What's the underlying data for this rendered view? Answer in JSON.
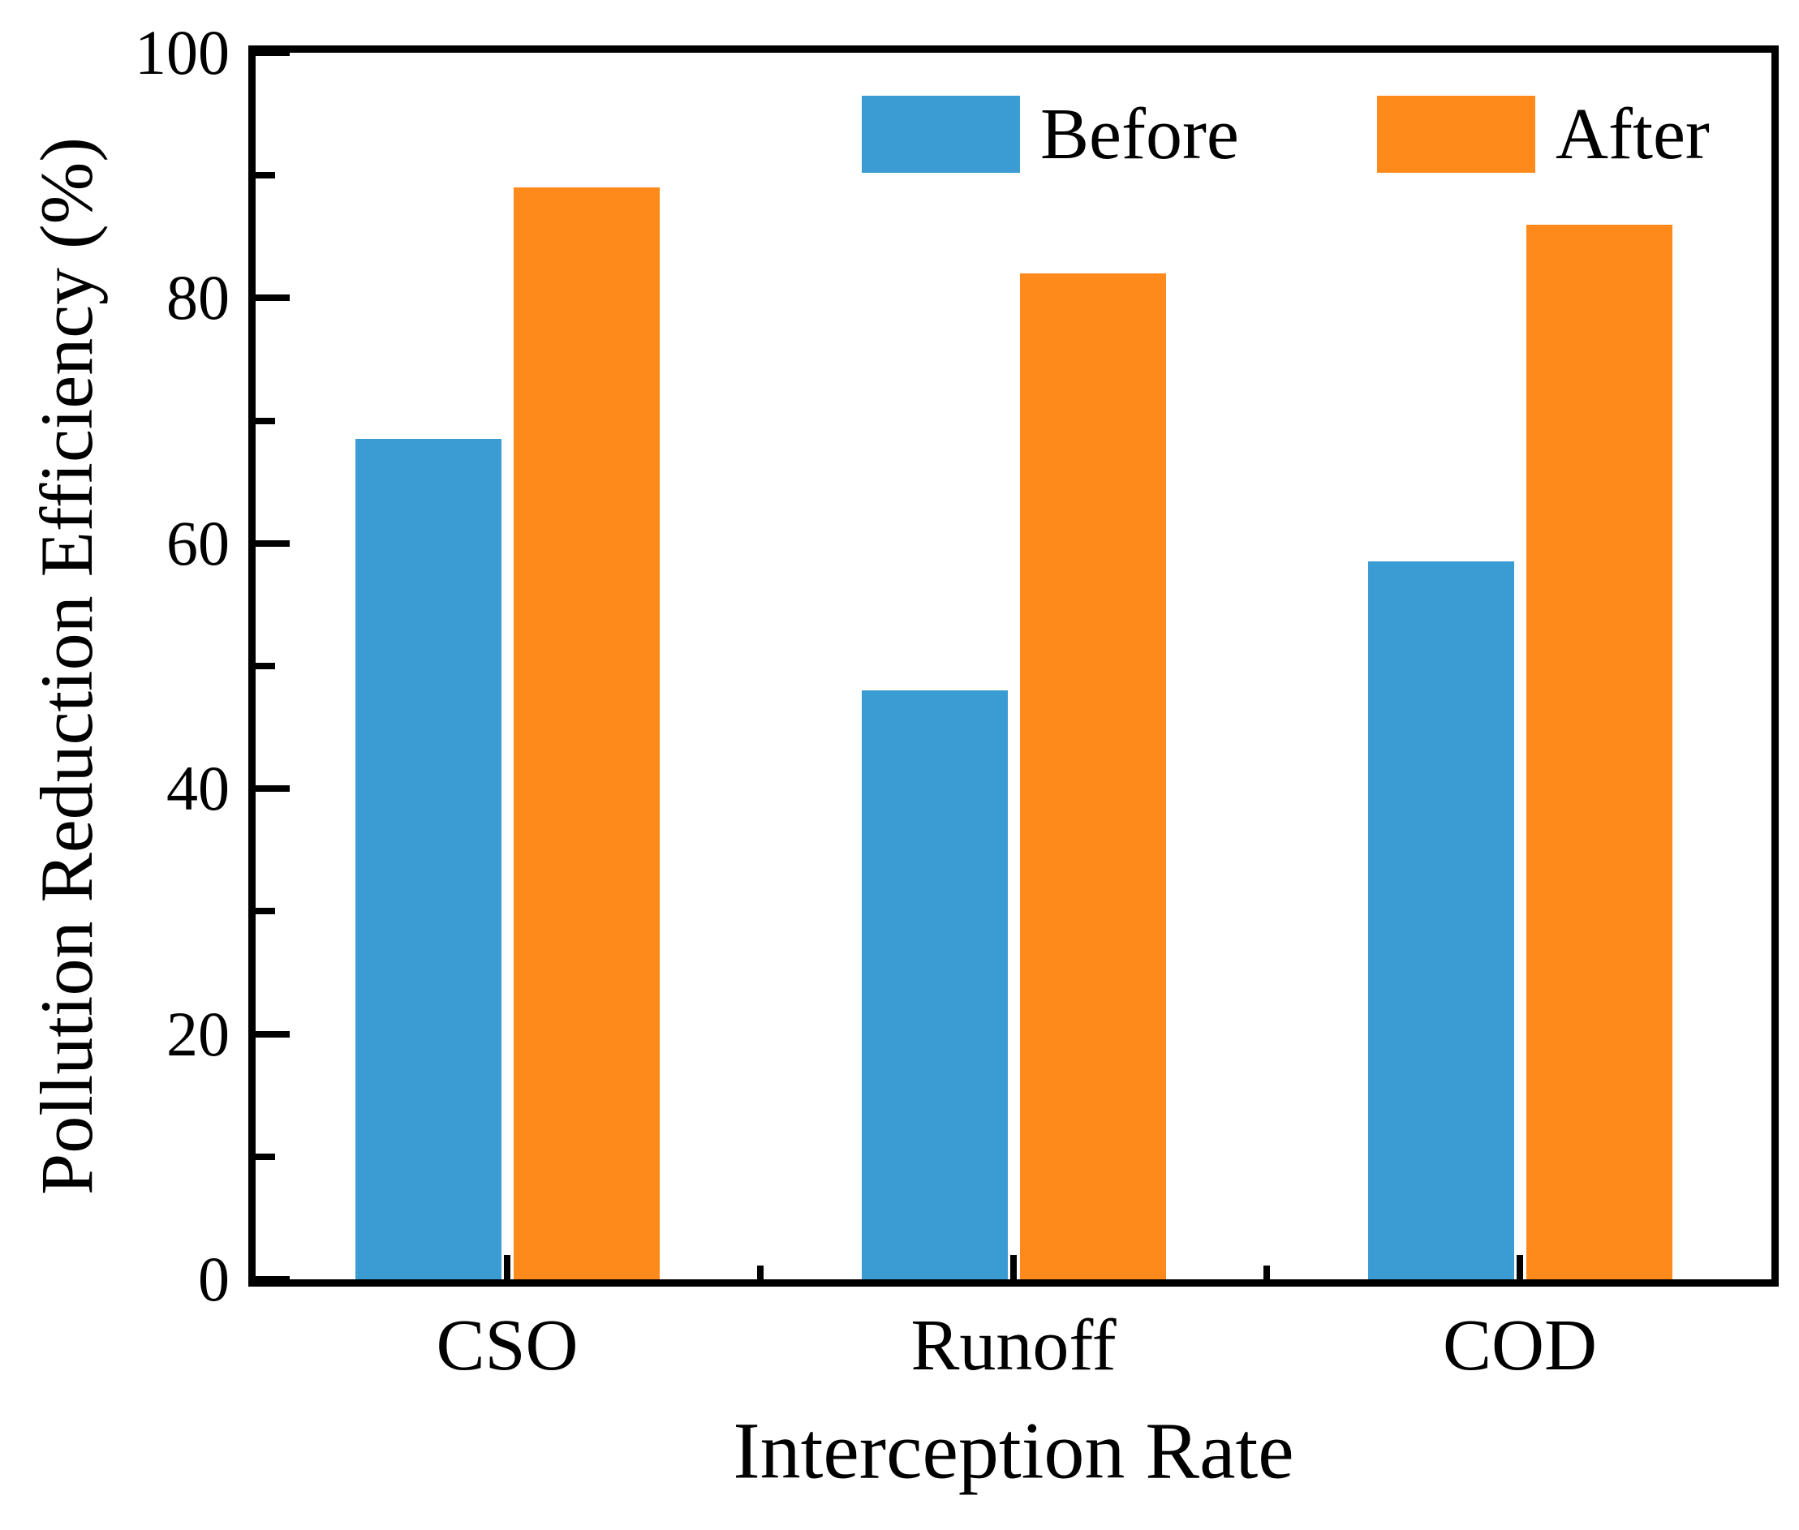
{
  "chart_data": {
    "type": "bar",
    "title": "",
    "categories": [
      "CSO",
      "Runoff",
      "COD"
    ],
    "series": [
      {
        "name": "Before",
        "color": "#3A9CD3",
        "values": [
          68.5,
          48,
          58.5
        ]
      },
      {
        "name": "After",
        "color": "#FD8A1B",
        "values": [
          89,
          82,
          86
        ]
      }
    ],
    "xlabel": "Interception Rate",
    "ylabel": "Pollution Reduction Efficiency (%)",
    "ylim": [
      0,
      100
    ],
    "y_major_ticks": [
      0,
      20,
      40,
      60,
      80,
      100
    ],
    "y_minor_ticks": [
      10,
      30,
      50,
      70,
      90
    ],
    "grid": false,
    "legend_position": "top-inside",
    "legend_entries": [
      "Before",
      "After"
    ],
    "axis_color": "#000000",
    "background_color": "#ffffff"
  }
}
